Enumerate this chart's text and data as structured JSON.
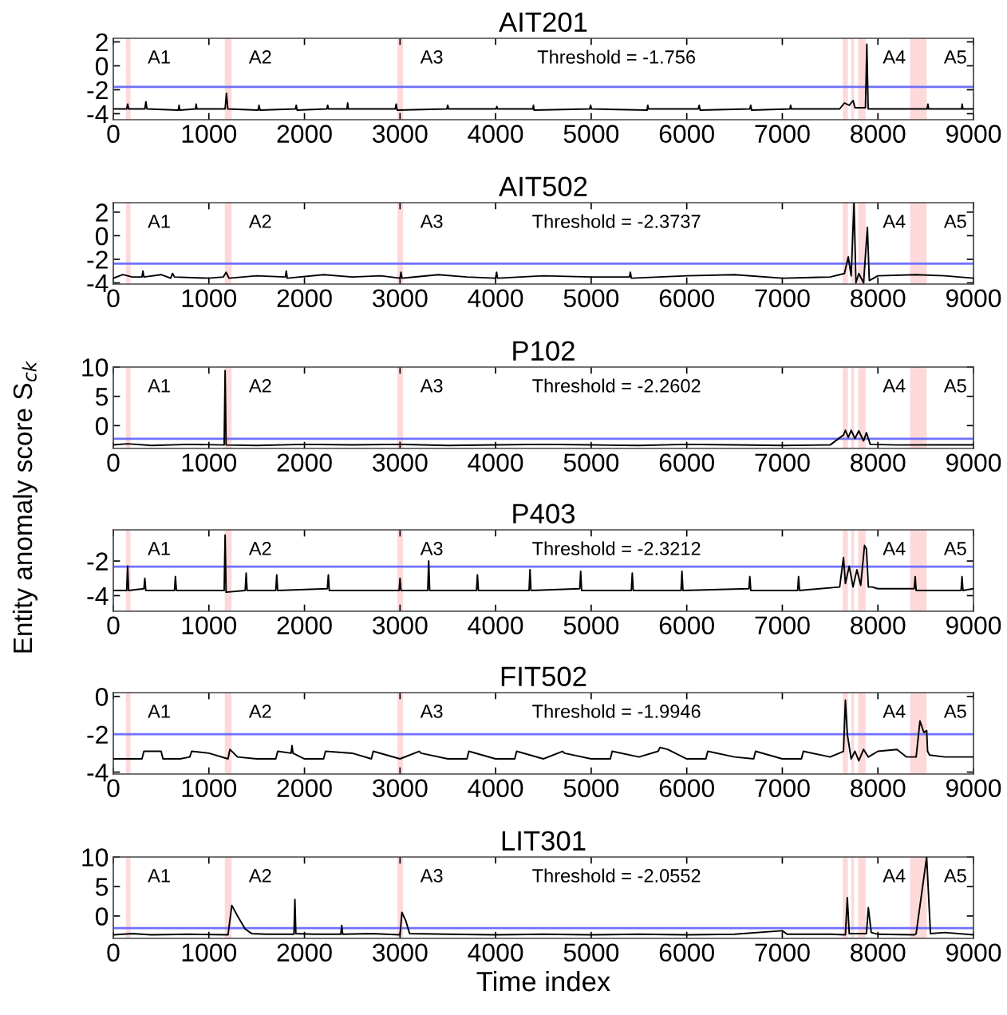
{
  "chart_data": [
    {
      "type": "line",
      "title": "AIT201",
      "color": "#000000",
      "xlim": [
        0,
        9000
      ],
      "xticks": [
        0,
        1000,
        2000,
        3000,
        4000,
        5000,
        6000,
        7000,
        8000,
        9000
      ],
      "ylim": [
        -4.5,
        2.3
      ],
      "yticks": [
        -4,
        -2,
        0,
        2
      ],
      "x": [
        0,
        140,
        150,
        160,
        330,
        341,
        352,
        680,
        688,
        696,
        860,
        867,
        874,
        1170,
        1184,
        1198,
        1515,
        1525,
        1535,
        1905,
        1914,
        1923,
        2235,
        2243,
        2251,
        2445,
        2452,
        2459,
        2950,
        2960,
        2970,
        3490,
        3499,
        3508,
        4005,
        4013,
        4021,
        4390,
        4396,
        4402,
        4985,
        4994,
        5003,
        5585,
        5592,
        5599,
        6120,
        6130,
        6140,
        6660,
        6669,
        6678,
        7080,
        7087,
        7094,
        7600,
        7650,
        7700,
        7740,
        7760,
        7870,
        7884,
        7898,
        8000,
        8515,
        8523,
        8531,
        8875,
        8882,
        8889,
        9000
      ],
      "values": [
        -3.6,
        -3.6,
        -3.2,
        -3.6,
        -3.6,
        -3.0,
        -3.6,
        -3.7,
        -3.3,
        -3.7,
        -3.6,
        -3.2,
        -3.6,
        -3.6,
        -2.3,
        -3.6,
        -3.7,
        -3.3,
        -3.7,
        -3.6,
        -3.3,
        -3.7,
        -3.6,
        -3.3,
        -3.6,
        -3.6,
        -3.1,
        -3.6,
        -3.6,
        -3.2,
        -3.7,
        -3.6,
        -3.3,
        -3.6,
        -3.6,
        -3.4,
        -3.6,
        -3.6,
        -3.3,
        -3.7,
        -3.6,
        -3.3,
        -3.6,
        -3.7,
        -3.3,
        -3.6,
        -3.6,
        -3.3,
        -3.7,
        -3.6,
        -3.3,
        -3.7,
        -3.6,
        -3.3,
        -3.6,
        -3.6,
        -3.1,
        -3.3,
        -2.9,
        -3.5,
        -3.5,
        1.8,
        -3.6,
        -3.6,
        -3.6,
        -3.2,
        -3.6,
        -3.6,
        -3.2,
        -3.6,
        -3.6
      ],
      "bands": [
        {
          "axis": "x",
          "from": 132,
          "to": 180,
          "label": "A1",
          "color": "#fdd9da"
        },
        {
          "axis": "x",
          "from": 1166,
          "to": 1238,
          "label": "A2",
          "color": "#fdd9da"
        },
        {
          "axis": "x",
          "from": 2972,
          "to": 3032,
          "label": "A3",
          "color": "#fdd9da"
        },
        {
          "axis": "x",
          "from": 7632,
          "to": 7686,
          "label": null,
          "color": "#fdd9da"
        },
        {
          "axis": "x",
          "from": 7721,
          "to": 7751,
          "label": null,
          "color": "#fdd9da"
        },
        {
          "axis": "x",
          "from": 7793,
          "to": 7871,
          "label": "A4",
          "color": "#fdd9da"
        },
        {
          "axis": "x",
          "from": 8337,
          "to": 8510,
          "label": "A5",
          "color": "#fdd9da"
        }
      ],
      "ref_lines": [
        {
          "axis": "y",
          "value": -1.756,
          "label": "Threshold = -1.756",
          "color": "#7070ff"
        }
      ]
    },
    {
      "type": "line",
      "title": "AIT502",
      "color": "#000000",
      "xlim": [
        0,
        9000
      ],
      "xticks": [
        0,
        1000,
        2000,
        3000,
        4000,
        5000,
        6000,
        7000,
        8000,
        9000
      ],
      "ylim": [
        -4.1,
        2.8
      ],
      "yticks": [
        -4,
        -2,
        0,
        2
      ],
      "x": [
        0,
        100,
        200,
        300,
        310,
        320,
        500,
        600,
        620,
        640,
        1000,
        1150,
        1180,
        1210,
        1500,
        1800,
        1810,
        1820,
        2200,
        2500,
        2800,
        3000,
        3010,
        3020,
        3400,
        3700,
        4000,
        4010,
        4020,
        4500,
        5000,
        5400,
        5410,
        5420,
        6000,
        6500,
        7000,
        7500,
        7650,
        7690,
        7720,
        7750,
        7770,
        7800,
        7850,
        7890,
        7910,
        8000,
        8400,
        8700,
        9000
      ],
      "values": [
        -3.6,
        -3.3,
        -3.5,
        -3.5,
        -3.0,
        -3.5,
        -3.3,
        -3.6,
        -3.2,
        -3.5,
        -3.6,
        -3.5,
        -3.1,
        -3.6,
        -3.4,
        -3.5,
        -3.0,
        -3.6,
        -3.3,
        -3.5,
        -3.4,
        -3.6,
        -3.1,
        -3.6,
        -3.3,
        -3.5,
        -3.6,
        -3.1,
        -3.6,
        -3.4,
        -3.5,
        -3.5,
        -3.1,
        -3.6,
        -3.4,
        -3.3,
        -3.6,
        -3.5,
        -3.2,
        -1.8,
        -3.4,
        2.8,
        -4.0,
        -3.2,
        -4.0,
        0.7,
        -3.8,
        -3.4,
        -3.3,
        -3.4,
        -3.6
      ],
      "bands": [
        {
          "axis": "x",
          "from": 132,
          "to": 180,
          "label": "A1",
          "color": "#fdd9da"
        },
        {
          "axis": "x",
          "from": 1166,
          "to": 1238,
          "label": "A2",
          "color": "#fdd9da"
        },
        {
          "axis": "x",
          "from": 2972,
          "to": 3032,
          "label": "A3",
          "color": "#fdd9da"
        },
        {
          "axis": "x",
          "from": 7632,
          "to": 7686,
          "label": null,
          "color": "#fdd9da"
        },
        {
          "axis": "x",
          "from": 7721,
          "to": 7751,
          "label": null,
          "color": "#fdd9da"
        },
        {
          "axis": "x",
          "from": 7793,
          "to": 7871,
          "label": "A4",
          "color": "#fdd9da"
        },
        {
          "axis": "x",
          "from": 8337,
          "to": 8510,
          "label": "A5",
          "color": "#fdd9da"
        }
      ],
      "ref_lines": [
        {
          "axis": "y",
          "value": -2.3737,
          "label": "Threshold = -2.3737",
          "color": "#7070ff"
        }
      ]
    },
    {
      "type": "line",
      "title": "P102",
      "ylabel": "Entity anomaly score S$_{ck}$",
      "color": "#000000",
      "xlim": [
        0,
        9000
      ],
      "xticks": [
        0,
        1000,
        2000,
        3000,
        4000,
        5000,
        6000,
        7000,
        8000,
        9000
      ],
      "ylim": [
        -3.9,
        10
      ],
      "yticks": [
        0,
        5,
        10
      ],
      "x": [
        0,
        150,
        400,
        800,
        1160,
        1170,
        1180,
        1500,
        2000,
        2500,
        3000,
        3500,
        4000,
        4500,
        5000,
        5500,
        6000,
        6500,
        7000,
        7500,
        7640,
        7660,
        7690,
        7720,
        7760,
        7800,
        7850,
        7880,
        7920,
        8200,
        8600,
        9000
      ],
      "values": [
        -3.3,
        -3.1,
        -3.4,
        -3.2,
        -3.3,
        9.4,
        -3.3,
        -3.4,
        -3.2,
        -3.3,
        -3.2,
        -3.4,
        -3.3,
        -3.2,
        -3.3,
        -3.4,
        -3.2,
        -3.3,
        -3.4,
        -3.3,
        -1.6,
        -0.8,
        -2.0,
        -0.8,
        -2.2,
        -0.9,
        -2.6,
        -1.2,
        -3.2,
        -3.3,
        -3.3,
        -3.3
      ],
      "bands": [
        {
          "axis": "x",
          "from": 132,
          "to": 180,
          "label": "A1",
          "color": "#fdd9da"
        },
        {
          "axis": "x",
          "from": 1166,
          "to": 1238,
          "label": "A2",
          "color": "#fdd9da"
        },
        {
          "axis": "x",
          "from": 2972,
          "to": 3032,
          "label": "A3",
          "color": "#fdd9da"
        },
        {
          "axis": "x",
          "from": 7632,
          "to": 7686,
          "label": null,
          "color": "#fdd9da"
        },
        {
          "axis": "x",
          "from": 7721,
          "to": 7751,
          "label": null,
          "color": "#fdd9da"
        },
        {
          "axis": "x",
          "from": 7793,
          "to": 7871,
          "label": "A4",
          "color": "#fdd9da"
        },
        {
          "axis": "x",
          "from": 8337,
          "to": 8510,
          "label": "A5",
          "color": "#fdd9da"
        }
      ],
      "ref_lines": [
        {
          "axis": "y",
          "value": -2.2602,
          "label": "Threshold = -2.2602",
          "color": "#7070ff"
        }
      ]
    },
    {
      "type": "line",
      "title": "P403",
      "color": "#000000",
      "xlim": [
        0,
        9000
      ],
      "xticks": [
        0,
        1000,
        2000,
        3000,
        4000,
        5000,
        6000,
        7000,
        8000,
        9000
      ],
      "ylim": [
        -4.9,
        -0.2
      ],
      "yticks": [
        -4,
        -2
      ],
      "x": [
        0,
        140,
        150,
        160,
        320,
        330,
        340,
        640,
        650,
        660,
        1160,
        1170,
        1180,
        1380,
        1390,
        1400,
        1700,
        1710,
        1720,
        2240,
        2250,
        2260,
        2990,
        3000,
        3010,
        3290,
        3300,
        3310,
        3800,
        3810,
        3820,
        4350,
        4360,
        4370,
        4880,
        4890,
        4900,
        5420,
        5430,
        5440,
        5940,
        5950,
        5960,
        6650,
        6660,
        6670,
        7160,
        7170,
        7180,
        7600,
        7640,
        7660,
        7700,
        7740,
        7780,
        7820,
        7860,
        7880,
        7900,
        7940,
        8000,
        8380,
        8390,
        8400,
        8870,
        8880,
        8890,
        9000
      ],
      "values": [
        -3.7,
        -3.7,
        -2.3,
        -3.7,
        -3.6,
        -3.0,
        -3.7,
        -3.7,
        -2.9,
        -3.7,
        -3.7,
        -0.5,
        -3.8,
        -3.7,
        -2.7,
        -3.7,
        -3.7,
        -2.8,
        -3.7,
        -3.6,
        -2.8,
        -3.7,
        -3.7,
        -3.0,
        -3.7,
        -3.7,
        -2.0,
        -3.7,
        -3.7,
        -2.8,
        -3.7,
        -3.7,
        -2.5,
        -3.7,
        -3.6,
        -2.6,
        -3.7,
        -3.7,
        -2.7,
        -3.7,
        -3.7,
        -2.6,
        -3.7,
        -3.6,
        -2.9,
        -3.7,
        -3.7,
        -2.9,
        -3.7,
        -3.5,
        -1.8,
        -3.3,
        -2.3,
        -3.5,
        -2.5,
        -3.4,
        -1.1,
        -1.3,
        -3.5,
        -3.5,
        -3.6,
        -3.6,
        -2.9,
        -3.7,
        -3.7,
        -2.9,
        -3.7,
        -3.6
      ],
      "bands": [
        {
          "axis": "x",
          "from": 132,
          "to": 180,
          "label": "A1",
          "color": "#fdd9da"
        },
        {
          "axis": "x",
          "from": 1166,
          "to": 1238,
          "label": "A2",
          "color": "#fdd9da"
        },
        {
          "axis": "x",
          "from": 2972,
          "to": 3032,
          "label": "A3",
          "color": "#fdd9da"
        },
        {
          "axis": "x",
          "from": 7632,
          "to": 7686,
          "label": null,
          "color": "#fdd9da"
        },
        {
          "axis": "x",
          "from": 7721,
          "to": 7751,
          "label": null,
          "color": "#fdd9da"
        },
        {
          "axis": "x",
          "from": 7793,
          "to": 7871,
          "label": "A4",
          "color": "#fdd9da"
        },
        {
          "axis": "x",
          "from": 8337,
          "to": 8510,
          "label": "A5",
          "color": "#fdd9da"
        }
      ],
      "ref_lines": [
        {
          "axis": "y",
          "value": -2.3212,
          "label": "Threshold = -2.3212",
          "color": "#7070ff"
        }
      ]
    },
    {
      "type": "line",
      "title": "FIT502",
      "color": "#000000",
      "xlim": [
        0,
        9000
      ],
      "xticks": [
        0,
        1000,
        2000,
        3000,
        4000,
        5000,
        6000,
        7000,
        8000,
        9000
      ],
      "ylim": [
        -4.1,
        0.2
      ],
      "yticks": [
        -4,
        -2,
        0
      ],
      "x": [
        0,
        300,
        320,
        500,
        520,
        700,
        800,
        820,
        1000,
        1200,
        1220,
        1300,
        1500,
        1700,
        1720,
        1860,
        1870,
        1880,
        2000,
        2200,
        2220,
        2500,
        2700,
        2720,
        3000,
        3200,
        3220,
        3500,
        3700,
        3720,
        4000,
        4200,
        4220,
        4500,
        4700,
        4720,
        5000,
        5200,
        5220,
        5500,
        5700,
        5720,
        5800,
        6000,
        6200,
        6220,
        6500,
        6700,
        6720,
        7000,
        7200,
        7220,
        7500,
        7640,
        7660,
        7680,
        7720,
        7760,
        7800,
        7850,
        7900,
        8000,
        8200,
        8300,
        8400,
        8440,
        8480,
        8510,
        8520,
        8540,
        8700,
        9000
      ],
      "values": [
        -3.3,
        -3.3,
        -2.9,
        -2.9,
        -3.3,
        -3.3,
        -3.2,
        -2.9,
        -3.0,
        -3.3,
        -2.8,
        -3.2,
        -3.3,
        -3.3,
        -2.9,
        -3.0,
        -2.6,
        -3.0,
        -3.3,
        -3.3,
        -2.9,
        -3.0,
        -3.3,
        -2.9,
        -3.3,
        -2.9,
        -3.0,
        -3.3,
        -3.3,
        -2.9,
        -3.3,
        -3.3,
        -2.9,
        -3.3,
        -2.9,
        -3.0,
        -3.3,
        -3.3,
        -2.9,
        -3.2,
        -2.9,
        -2.7,
        -2.8,
        -3.3,
        -3.3,
        -2.9,
        -3.2,
        -3.3,
        -2.9,
        -3.3,
        -3.3,
        -2.9,
        -3.2,
        -2.9,
        -0.2,
        -2.0,
        -3.3,
        -2.9,
        -3.4,
        -2.8,
        -3.2,
        -2.9,
        -2.8,
        -3.2,
        -3.2,
        -1.3,
        -1.9,
        -1.8,
        -2.9,
        -3.1,
        -3.2,
        -3.2
      ],
      "bands": [
        {
          "axis": "x",
          "from": 132,
          "to": 180,
          "label": "A1",
          "color": "#fdd9da"
        },
        {
          "axis": "x",
          "from": 1166,
          "to": 1238,
          "label": "A2",
          "color": "#fdd9da"
        },
        {
          "axis": "x",
          "from": 2972,
          "to": 3032,
          "label": "A3",
          "color": "#fdd9da"
        },
        {
          "axis": "x",
          "from": 7632,
          "to": 7686,
          "label": null,
          "color": "#fdd9da"
        },
        {
          "axis": "x",
          "from": 7721,
          "to": 7751,
          "label": null,
          "color": "#fdd9da"
        },
        {
          "axis": "x",
          "from": 7793,
          "to": 7871,
          "label": "A4",
          "color": "#fdd9da"
        },
        {
          "axis": "x",
          "from": 8337,
          "to": 8510,
          "label": "A5",
          "color": "#fdd9da"
        }
      ],
      "ref_lines": [
        {
          "axis": "y",
          "value": -1.9946,
          "label": "Threshold = -1.9946",
          "color": "#7070ff"
        }
      ]
    },
    {
      "type": "line",
      "title": "LIT301",
      "xlabel": "Time index",
      "color": "#000000",
      "xlim": [
        0,
        9000
      ],
      "xticks": [
        0,
        1000,
        2000,
        3000,
        4000,
        5000,
        6000,
        7000,
        8000,
        9000
      ],
      "ylim": [
        -3.8,
        10
      ],
      "yticks": [
        0,
        5,
        10
      ],
      "x": [
        0,
        200,
        400,
        800,
        1200,
        1240,
        1300,
        1380,
        1450,
        1600,
        1890,
        1900,
        1910,
        2100,
        2380,
        2390,
        2400,
        2700,
        3000,
        3020,
        3060,
        3100,
        3500,
        4000,
        4500,
        5000,
        5500,
        6000,
        6500,
        7000,
        7050,
        7500,
        7660,
        7680,
        7700,
        7880,
        7900,
        7930,
        8000,
        8380,
        8400,
        8510,
        8550,
        8700,
        9000
      ],
      "values": [
        -3.2,
        -3.0,
        -3.2,
        -3.1,
        -3.2,
        1.8,
        0.0,
        -2.2,
        -3.0,
        -3.1,
        -3.1,
        2.8,
        -3.0,
        -3.1,
        -3.1,
        -1.6,
        -3.1,
        -3.0,
        -3.2,
        0.6,
        -0.8,
        -3.0,
        -3.1,
        -3.2,
        -3.1,
        -3.2,
        -3.1,
        -3.2,
        -3.1,
        -2.5,
        -3.1,
        -3.1,
        -3.2,
        3.1,
        -3.0,
        -3.0,
        1.4,
        -2.8,
        -3.1,
        -3.2,
        -3.0,
        10,
        -3.0,
        -2.8,
        -3.2
      ],
      "bands": [
        {
          "axis": "x",
          "from": 132,
          "to": 180,
          "label": "A1",
          "color": "#fdd9da"
        },
        {
          "axis": "x",
          "from": 1166,
          "to": 1238,
          "label": "A2",
          "color": "#fdd9da"
        },
        {
          "axis": "x",
          "from": 2972,
          "to": 3032,
          "label": "A3",
          "color": "#fdd9da"
        },
        {
          "axis": "x",
          "from": 7632,
          "to": 7686,
          "label": null,
          "color": "#fdd9da"
        },
        {
          "axis": "x",
          "from": 7721,
          "to": 7751,
          "label": null,
          "color": "#fdd9da"
        },
        {
          "axis": "x",
          "from": 7793,
          "to": 7871,
          "label": "A4",
          "color": "#fdd9da"
        },
        {
          "axis": "x",
          "from": 8337,
          "to": 8510,
          "label": "A5",
          "color": "#fdd9da"
        }
      ],
      "ref_lines": [
        {
          "axis": "y",
          "value": -2.0552,
          "label": "Threshold = -2.0552",
          "color": "#7070ff"
        }
      ]
    }
  ]
}
